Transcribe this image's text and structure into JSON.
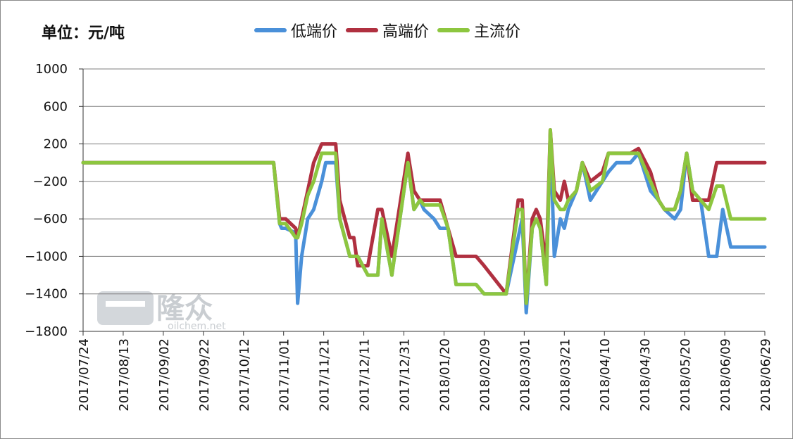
{
  "chart_data": {
    "type": "line",
    "unit_label": "单位：元/吨",
    "ylim": [
      -1800,
      1000
    ],
    "yticks": [
      1000,
      600,
      200,
      -200,
      -600,
      -1000,
      -1400,
      -1800
    ],
    "grid": true,
    "legend_position": "top",
    "xticks": [
      "2017/07/24",
      "2017/08/13",
      "2017/09/02",
      "2017/09/22",
      "2017/10/12",
      "2017/11/01",
      "2017/11/21",
      "2017/12/11",
      "2017/12/31",
      "2018/01/20",
      "2018/02/09",
      "2018/03/01",
      "2018/03/21",
      "2018/04/10",
      "2018/04/30",
      "2018/05/20",
      "2018/06/09",
      "2018/06/29"
    ],
    "x": [
      "2017/07/24",
      "2017/10/26",
      "2017/10/27",
      "2017/10/30",
      "2017/10/31",
      "2017/11/02",
      "2017/11/07",
      "2017/11/08",
      "2017/11/10",
      "2017/11/13",
      "2017/11/16",
      "2017/11/20",
      "2017/11/22",
      "2017/11/27",
      "2017/11/29",
      "2017/12/04",
      "2017/12/06",
      "2017/12/08",
      "2017/12/13",
      "2017/12/18",
      "2017/12/20",
      "2017/12/25",
      "2018/01/02",
      "2018/01/05",
      "2018/01/08",
      "2018/01/10",
      "2018/01/15",
      "2018/01/18",
      "2018/01/22",
      "2018/01/26",
      "2018/01/30",
      "2018/02/05",
      "2018/02/09",
      "2018/02/20",
      "2018/02/26",
      "2018/02/28",
      "2018/03/02",
      "2018/03/05",
      "2018/03/07",
      "2018/03/09",
      "2018/03/12",
      "2018/03/14",
      "2018/03/16",
      "2018/03/19",
      "2018/03/21",
      "2018/03/23",
      "2018/03/27",
      "2018/03/30",
      "2018/04/03",
      "2018/04/09",
      "2018/04/12",
      "2018/04/16",
      "2018/04/19",
      "2018/04/23",
      "2018/04/27",
      "2018/05/03",
      "2018/05/07",
      "2018/05/10",
      "2018/05/15",
      "2018/05/18",
      "2018/05/21",
      "2018/05/24",
      "2018/05/28",
      "2018/06/01",
      "2018/06/05",
      "2018/06/08",
      "2018/06/12",
      "2018/06/20",
      "2018/06/29"
    ],
    "series": [
      {
        "name": "低端价",
        "color": "#4a90d9",
        "values": [
          0,
          0,
          0,
          -650,
          -700,
          -700,
          -750,
          -1500,
          -1000,
          -600,
          -500,
          -200,
          0,
          0,
          -600,
          -1000,
          -1000,
          -1000,
          -1200,
          -1200,
          -600,
          -1200,
          0,
          -500,
          -400,
          -500,
          -600,
          -700,
          -700,
          -1300,
          -1300,
          -1300,
          -1400,
          -1400,
          -800,
          -600,
          -1600,
          -700,
          -600,
          -700,
          -1300,
          300,
          -1000,
          -600,
          -700,
          -500,
          -300,
          0,
          -400,
          -200,
          -100,
          0,
          0,
          0,
          100,
          -300,
          -400,
          -500,
          -600,
          -500,
          100,
          -300,
          -400,
          -1000,
          -1000,
          -500,
          -900,
          -900,
          -900
        ]
      },
      {
        "name": "高端价",
        "color": "#b03040",
        "values": [
          0,
          0,
          0,
          -600,
          -600,
          -600,
          -700,
          -800,
          -600,
          -300,
          0,
          200,
          200,
          200,
          -400,
          -800,
          -800,
          -1100,
          -1100,
          -500,
          -500,
          -1000,
          100,
          -300,
          -400,
          -400,
          -400,
          -400,
          -700,
          -1000,
          -1000,
          -1000,
          -1100,
          -1400,
          -400,
          -400,
          -1500,
          -600,
          -500,
          -600,
          -1100,
          350,
          -300,
          -400,
          -200,
          -400,
          -300,
          0,
          -200,
          -100,
          100,
          100,
          100,
          100,
          150,
          -100,
          -400,
          -500,
          -500,
          -300,
          100,
          -400,
          -400,
          -400,
          0,
          0,
          0,
          0,
          0
        ]
      },
      {
        "name": "主流价",
        "color": "#8dc63f",
        "values": [
          0,
          0,
          0,
          -650,
          -650,
          -650,
          -800,
          -800,
          -650,
          -350,
          -200,
          100,
          100,
          100,
          -600,
          -1000,
          -1000,
          -1000,
          -1200,
          -1200,
          -600,
          -1200,
          0,
          -500,
          -400,
          -450,
          -450,
          -450,
          -700,
          -1300,
          -1300,
          -1300,
          -1400,
          -1400,
          -500,
          -500,
          -1500,
          -700,
          -600,
          -700,
          -1300,
          350,
          -400,
          -500,
          -500,
          -400,
          -300,
          0,
          -300,
          -200,
          100,
          100,
          100,
          100,
          100,
          -200,
          -400,
          -500,
          -500,
          -300,
          100,
          -300,
          -400,
          -500,
          -250,
          -250,
          -600,
          -600,
          -600
        ]
      }
    ]
  },
  "watermark": {
    "brand": "隆众",
    "site": "oilchem.net"
  }
}
